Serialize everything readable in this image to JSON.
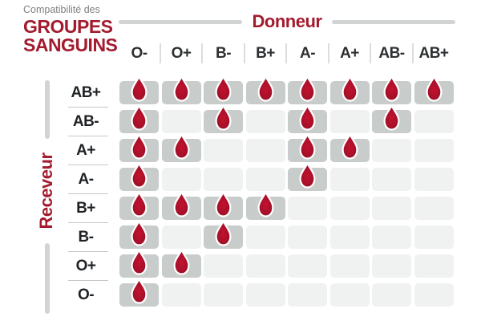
{
  "title": {
    "kicker": "Compatibilité des",
    "line1": "GROUPES",
    "line2": "SANGUINS"
  },
  "axes": {
    "donor": "Donneur",
    "receiver": "Receveur"
  },
  "chart_data": {
    "type": "heatmap",
    "title": "Compatibilité des groupes sanguins",
    "x_axis": {
      "label": "Donneur",
      "categories": [
        "O-",
        "O+",
        "B-",
        "B+",
        "A-",
        "A+",
        "AB-",
        "AB+"
      ]
    },
    "y_axis": {
      "label": "Receveur",
      "categories": [
        "AB+",
        "AB-",
        "A+",
        "A-",
        "B+",
        "B-",
        "O+",
        "O-"
      ]
    },
    "matrix": [
      [
        1,
        1,
        1,
        1,
        1,
        1,
        1,
        1
      ],
      [
        1,
        0,
        1,
        0,
        1,
        0,
        1,
        0
      ],
      [
        1,
        1,
        0,
        0,
        1,
        1,
        0,
        0
      ],
      [
        1,
        0,
        0,
        0,
        1,
        0,
        0,
        0
      ],
      [
        1,
        1,
        1,
        1,
        0,
        0,
        0,
        0
      ],
      [
        1,
        0,
        1,
        0,
        0,
        0,
        0,
        0
      ],
      [
        1,
        1,
        0,
        0,
        0,
        0,
        0,
        0
      ],
      [
        1,
        0,
        0,
        0,
        0,
        0,
        0,
        0
      ]
    ],
    "cell_marker": "blood-drop-icon",
    "grid": "off",
    "legend_position": "none"
  },
  "colors": {
    "brand_red": "#a31b2e",
    "drop_red_center": "#c2122f",
    "drop_red_edge": "#8c0e23",
    "cell_filled": "#c8cccb",
    "cell_empty": "#f0f1f1",
    "axis_line_gray": "#d2d4d4",
    "kicker_gray": "#7e8081",
    "header_text_dark": "#2d2f31"
  }
}
